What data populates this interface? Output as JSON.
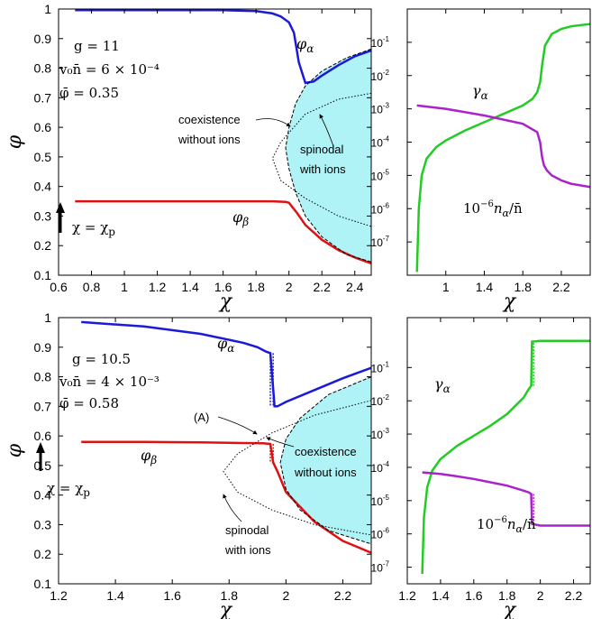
{
  "chart_data": [
    {
      "id": "top_left",
      "type": "line",
      "xlabel": "χ",
      "ylabel": "φ",
      "xlim": [
        0.6,
        2.5
      ],
      "ylim": [
        0.1,
        1.0
      ],
      "xticks": [
        0.6,
        0.8,
        1.0,
        1.2,
        1.4,
        1.6,
        1.8,
        2.0,
        2.2,
        2.4
      ],
      "xtick_labels": [
        "0.6",
        "0.8",
        "1",
        "1.2",
        "1.4",
        "1.6",
        "1.8",
        "2",
        "2.2",
        "2.4"
      ],
      "yticks": [
        0.1,
        0.2,
        0.3,
        0.4,
        0.5,
        0.6,
        0.7,
        0.8,
        0.9,
        1.0
      ],
      "ytick_labels": [
        "0.1",
        "0.2",
        "0.3",
        "0.4",
        "0.5",
        "0.6",
        "0.7",
        "0.8",
        "0.9",
        "1"
      ],
      "params": [
        "g = 11",
        "v₀n̄ = 6 × 10⁻⁴",
        "φ̄ = 0.35"
      ],
      "annotations": {
        "coexistence": "coexistence",
        "without_ions": "without ions",
        "spinodal": "spinodal",
        "with_ions": "with ions",
        "chi_p": "χ = χ"
      },
      "series": [
        {
          "name": "φ_α",
          "color": "#1a1ad8",
          "x": [
            0.7,
            1.2,
            1.6,
            1.8,
            1.9,
            1.95,
            2.0,
            2.03,
            2.06,
            2.1,
            2.15,
            2.2,
            2.3,
            2.4,
            2.5
          ],
          "y": [
            0.996,
            0.996,
            0.996,
            0.993,
            0.985,
            0.975,
            0.955,
            0.92,
            0.82,
            0.75,
            0.755,
            0.775,
            0.81,
            0.84,
            0.86
          ]
        },
        {
          "name": "φ_β",
          "color": "#e01010",
          "x": [
            0.7,
            1.2,
            1.6,
            1.9,
            1.98,
            2.0,
            2.05,
            2.1,
            2.2,
            2.3,
            2.4,
            2.5
          ],
          "y": [
            0.35,
            0.35,
            0.35,
            0.35,
            0.348,
            0.345,
            0.31,
            0.27,
            0.22,
            0.185,
            0.16,
            0.14
          ]
        },
        {
          "name": "coexistence without ions",
          "style": "dashed",
          "x": [
            2.5,
            2.35,
            2.2,
            2.1,
            2.04,
            2.0,
            1.98,
            2.0,
            2.04,
            2.1,
            2.2,
            2.35,
            2.5
          ],
          "y": [
            0.865,
            0.835,
            0.79,
            0.74,
            0.68,
            0.6,
            0.53,
            0.46,
            0.38,
            0.3,
            0.23,
            0.17,
            0.145
          ]
        },
        {
          "name": "spinodal with ions",
          "style": "dotted",
          "x": [
            2.5,
            2.3,
            2.1,
            1.95,
            1.9,
            1.95,
            2.1,
            2.3,
            2.5
          ],
          "y": [
            0.715,
            0.695,
            0.645,
            0.55,
            0.495,
            0.42,
            0.36,
            0.3,
            0.265
          ]
        }
      ]
    },
    {
      "id": "top_right",
      "type": "line",
      "xlabel": "χ",
      "yscale": "log",
      "xlim": [
        0.6,
        2.5
      ],
      "ylim_log10": [
        -8,
        0
      ],
      "xticks": [
        1.0,
        1.4,
        1.8,
        2.2
      ],
      "xtick_labels": [
        "1",
        "1.4",
        "1.8",
        "2.2"
      ],
      "ytick_labels": [
        "10",
        "10",
        "10",
        "10",
        "10",
        "10",
        "10",
        "10"
      ],
      "ytick_exponents": [
        "-7",
        "-6",
        "-5",
        "-4",
        "-3",
        "-2",
        "-1"
      ],
      "series": [
        {
          "name": "γ_α",
          "color": "#22cc22",
          "x": [
            0.7,
            0.72,
            0.75,
            0.8,
            0.9,
            1.0,
            1.2,
            1.4,
            1.6,
            1.8,
            1.9,
            1.95,
            1.98,
            2.0,
            2.03,
            2.1,
            2.2,
            2.3,
            2.5
          ],
          "y_log10": [
            -7.9,
            -6,
            -5,
            -4.5,
            -4.15,
            -3.95,
            -3.65,
            -3.4,
            -3.15,
            -2.9,
            -2.7,
            -2.5,
            -2.2,
            -1.7,
            -1.1,
            -0.75,
            -0.6,
            -0.52,
            -0.45
          ]
        },
        {
          "name": "10⁻⁶ n_α / n̄",
          "color": "#aa22cc",
          "x": [
            0.7,
            1.0,
            1.4,
            1.8,
            1.95,
            1.98,
            2.0,
            2.02,
            2.05,
            2.1,
            2.2,
            2.3,
            2.5
          ],
          "y_log10": [
            -2.9,
            -3.0,
            -3.2,
            -3.45,
            -3.7,
            -4.0,
            -4.45,
            -4.7,
            -4.85,
            -5.0,
            -5.15,
            -5.25,
            -5.35
          ]
        }
      ]
    },
    {
      "id": "bottom_left",
      "type": "line",
      "xlabel": "χ",
      "ylabel": "φ",
      "xlim": [
        1.2,
        2.3
      ],
      "ylim": [
        0.1,
        1.0
      ],
      "xticks": [
        1.2,
        1.4,
        1.6,
        1.8,
        2.0,
        2.2
      ],
      "xtick_labels": [
        "1.2",
        "1.4",
        "1.6",
        "1.8",
        "2",
        "2.2"
      ],
      "yticks": [
        0.1,
        0.2,
        0.3,
        0.4,
        0.5,
        0.6,
        0.7,
        0.8,
        0.9,
        1.0
      ],
      "ytick_labels": [
        "0.1",
        "0.2",
        "0.3",
        "0.4",
        "0.5",
        "0.6",
        "0.7",
        "0.8",
        "0.9",
        "1"
      ],
      "params": [
        "g = 10.5",
        "v₀n̄ = 4 × 10⁻³",
        "φ̄ = 0.58"
      ],
      "annotations": {
        "A": "(A)",
        "coexistence": "coexistence",
        "without_ions": "without ions",
        "spinodal": "spinodal",
        "with_ions": "with ions",
        "chi_p": "χ = χ"
      },
      "series": [
        {
          "name": "φ_α",
          "color": "#1a1ad8",
          "x": [
            1.28,
            1.5,
            1.7,
            1.85,
            1.9,
            1.93,
            1.945,
            1.96,
            1.97,
            2.0,
            2.1,
            2.2,
            2.3
          ],
          "y": [
            0.985,
            0.97,
            0.945,
            0.915,
            0.9,
            0.885,
            0.88,
            0.7,
            0.7,
            0.715,
            0.755,
            0.795,
            0.83
          ]
        },
        {
          "name": "φ_β",
          "color": "#e01010",
          "x": [
            1.28,
            1.5,
            1.7,
            1.85,
            1.92,
            1.945,
            1.955,
            1.97,
            2.0,
            2.1,
            2.2,
            2.3
          ],
          "y": [
            0.58,
            0.58,
            0.578,
            0.576,
            0.575,
            0.573,
            0.51,
            0.48,
            0.41,
            0.31,
            0.245,
            0.205
          ]
        },
        {
          "name": "coexistence without ions",
          "style": "dashed",
          "x": [
            2.3,
            2.15,
            2.05,
            2.0,
            1.98,
            2.0,
            2.05,
            2.15,
            2.3
          ],
          "y": [
            0.8,
            0.74,
            0.66,
            0.59,
            0.51,
            0.42,
            0.35,
            0.28,
            0.235
          ]
        },
        {
          "name": "spinodal with ions",
          "style": "dotted",
          "x": [
            2.3,
            2.1,
            1.95,
            1.83,
            1.78,
            1.83,
            1.95,
            2.1,
            2.3
          ],
          "y": [
            0.72,
            0.67,
            0.61,
            0.54,
            0.48,
            0.41,
            0.35,
            0.3,
            0.265
          ]
        }
      ]
    },
    {
      "id": "bottom_right",
      "type": "line",
      "xlabel": "χ",
      "yscale": "log",
      "xlim": [
        1.2,
        2.3
      ],
      "ylim_log10": [
        -7.5,
        0.5
      ],
      "xticks": [
        1.2,
        1.4,
        1.6,
        1.8,
        2.0,
        2.2
      ],
      "xtick_labels": [
        "1.2",
        "1.4",
        "1.6",
        "1.8",
        "2",
        "2.2"
      ],
      "ytick_labels": [
        "10",
        "10",
        "10",
        "10",
        "10",
        "10",
        "10",
        "10"
      ],
      "ytick_exponents": [
        "-7",
        "-6",
        "-5",
        "-4",
        "-3",
        "-2",
        "-1"
      ],
      "series": [
        {
          "name": "γ_α",
          "color": "#22cc22",
          "x": [
            1.29,
            1.3,
            1.32,
            1.35,
            1.4,
            1.5,
            1.6,
            1.7,
            1.8,
            1.9,
            1.93,
            1.945,
            1.95,
            2.0,
            2.1,
            2.2,
            2.3
          ],
          "y_log10": [
            -7.2,
            -5.5,
            -4.6,
            -4.1,
            -3.75,
            -3.35,
            -3.05,
            -2.75,
            -2.4,
            -1.9,
            -1.65,
            -1.55,
            -0.22,
            -0.2,
            -0.2,
            -0.2,
            -0.2
          ]
        },
        {
          "name": "10⁻⁶ n_α / n̄",
          "color": "#aa22cc",
          "x": [
            1.29,
            1.4,
            1.5,
            1.6,
            1.7,
            1.8,
            1.9,
            1.93,
            1.945,
            1.95,
            2.0,
            2.1,
            2.2,
            2.3
          ],
          "y_log10": [
            -4.15,
            -4.2,
            -4.27,
            -4.35,
            -4.45,
            -4.55,
            -4.7,
            -4.75,
            -4.8,
            -5.7,
            -5.75,
            -5.75,
            -5.75,
            -5.75
          ]
        }
      ]
    }
  ],
  "labels": {
    "gamma_alpha": "γ",
    "n_alpha_prefix": "10",
    "n_alpha_exp": "−6",
    "n_alpha_var": "n",
    "alpha_sub": "α",
    "beta_sub": "β",
    "p_sub": "p",
    "phi": "φ"
  }
}
